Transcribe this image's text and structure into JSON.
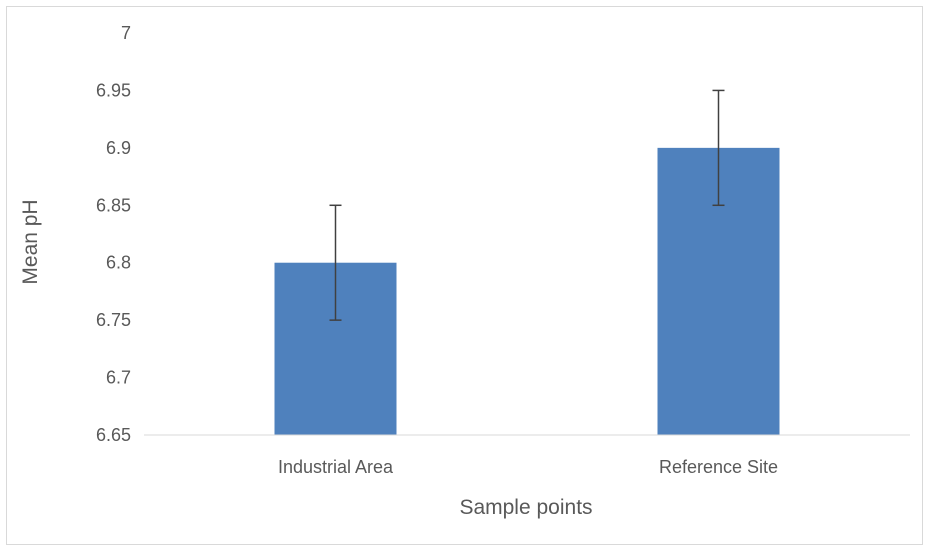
{
  "chart_data": {
    "type": "bar",
    "title": "",
    "xlabel": "Sample points",
    "ylabel": "Mean pH",
    "categories": [
      "Industrial Area",
      "Reference Site"
    ],
    "values": [
      6.8,
      6.9
    ],
    "error": [
      0.05,
      0.05
    ],
    "ylim": [
      6.65,
      7.0
    ],
    "yticks": [
      "6.65",
      "6.7",
      "6.75",
      "6.8",
      "6.85",
      "6.9",
      "6.95",
      "7"
    ],
    "grid": false,
    "legend": "none",
    "colors": {
      "bar": "#4f81bd",
      "error_bar": "#404040",
      "axis": "#d9d9d9",
      "text": "#595959"
    }
  }
}
